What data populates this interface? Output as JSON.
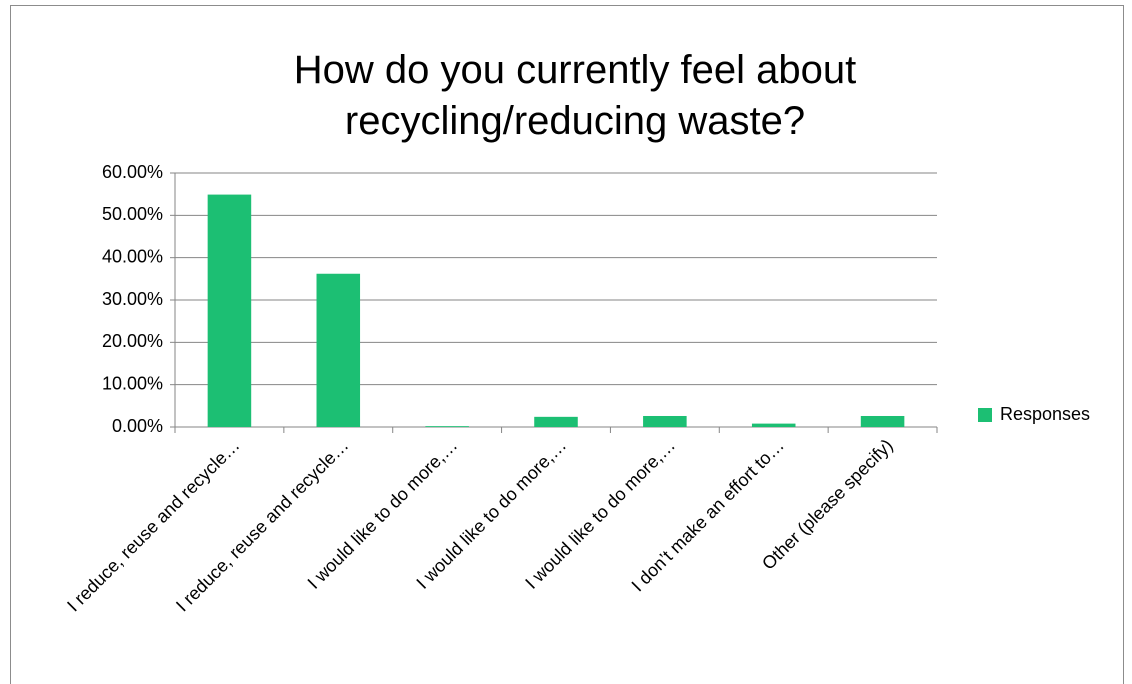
{
  "chart_data": {
    "type": "bar",
    "title": "How do you currently feel about recycling/reducing waste?",
    "categories": [
      "I reduce, reuse and recycle…",
      "I reduce, reuse and recycle…",
      "I would like to do more,…",
      "I would like to do more,…",
      "I would like to do more,…",
      "I don’t make an effort to…",
      "Other (please specify)"
    ],
    "series": [
      {
        "name": "Responses",
        "color": "#1cbf73",
        "values": [
          54.9,
          36.2,
          0.2,
          2.4,
          2.6,
          0.8,
          2.6
        ]
      }
    ],
    "ylim": [
      0,
      60
    ],
    "yticks": [
      {
        "value": 0,
        "label": "0.00%"
      },
      {
        "value": 10,
        "label": "10.00%"
      },
      {
        "value": 20,
        "label": "20.00%"
      },
      {
        "value": 30,
        "label": "30.00%"
      },
      {
        "value": 40,
        "label": "40.00%"
      },
      {
        "value": 50,
        "label": "50.00%"
      },
      {
        "value": 60,
        "label": "60.00%"
      }
    ],
    "grid": true,
    "legend": "right"
  }
}
